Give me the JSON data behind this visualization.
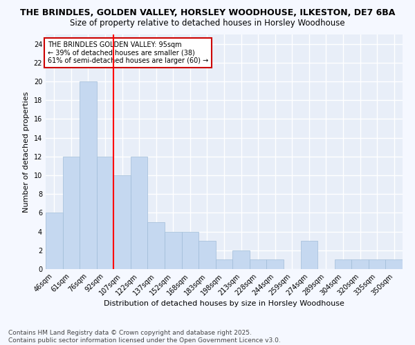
{
  "title1": "THE BRINDLES, GOLDEN VALLEY, HORSLEY WOODHOUSE, ILKESTON, DE7 6BA",
  "title2": "Size of property relative to detached houses in Horsley Woodhouse",
  "xlabel": "Distribution of detached houses by size in Horsley Woodhouse",
  "ylabel": "Number of detached properties",
  "categories": [
    "46sqm",
    "61sqm",
    "76sqm",
    "92sqm",
    "107sqm",
    "122sqm",
    "137sqm",
    "152sqm",
    "168sqm",
    "183sqm",
    "198sqm",
    "213sqm",
    "228sqm",
    "244sqm",
    "259sqm",
    "274sqm",
    "289sqm",
    "304sqm",
    "320sqm",
    "335sqm",
    "350sqm"
  ],
  "values": [
    6,
    12,
    20,
    12,
    10,
    12,
    5,
    4,
    4,
    3,
    1,
    2,
    1,
    1,
    0,
    3,
    0,
    1,
    1,
    1,
    1
  ],
  "bar_color": "#c5d8f0",
  "bar_edge_color": "#a0bcd8",
  "red_line_x": 3.0,
  "ylim": [
    0,
    25
  ],
  "yticks": [
    0,
    2,
    4,
    6,
    8,
    10,
    12,
    14,
    16,
    18,
    20,
    22,
    24
  ],
  "annotation_title": "THE BRINDLES GOLDEN VALLEY: 95sqm",
  "annotation_line1": "← 39% of detached houses are smaller (38)",
  "annotation_line2": "61% of semi-detached houses are larger (60) →",
  "annotation_box_color": "#ffffff",
  "annotation_box_edge": "#cc0000",
  "footer1": "Contains HM Land Registry data © Crown copyright and database right 2025.",
  "footer2": "Contains public sector information licensed under the Open Government Licence v3.0.",
  "bg_color": "#e8eef8",
  "grid_color": "#ffffff",
  "fig_bg_color": "#f5f8ff",
  "title_fontsize": 9,
  "subtitle_fontsize": 8.5,
  "axis_label_fontsize": 8,
  "tick_fontsize": 7,
  "annotation_fontsize": 7,
  "footer_fontsize": 6.5
}
